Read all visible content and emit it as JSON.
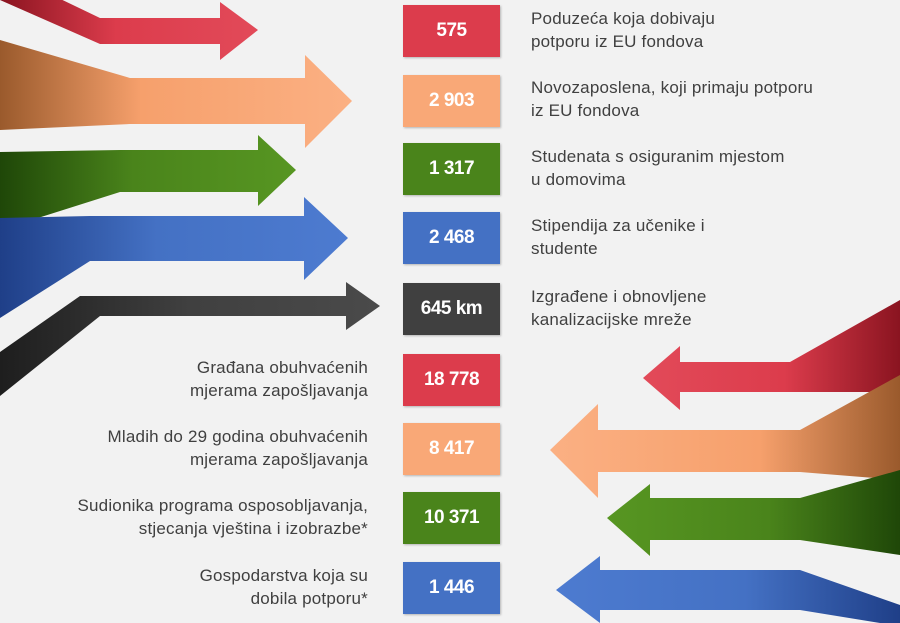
{
  "colors": {
    "red": "#dc3c4c",
    "orange": "#f9a877",
    "green": "#4a841b",
    "blue": "#4471c4",
    "dark": "#404040"
  },
  "items": [
    {
      "value": "575",
      "color": "red",
      "side": "right",
      "line1": "Poduzeća koja dobivaju",
      "line2": "potporu iz EU fondova"
    },
    {
      "value": "2 903",
      "color": "orange",
      "side": "right",
      "line1": "Novozaposlena, koji primaju potporu",
      "line2": "iz EU fondova"
    },
    {
      "value": "1 317",
      "color": "green",
      "side": "right",
      "line1": "Studenata s osiguranim mjestom",
      "line2": "u domovima"
    },
    {
      "value": "2 468",
      "color": "blue",
      "side": "right",
      "line1": "Stipendija za učenike i",
      "line2": "studente"
    },
    {
      "value": "645 km",
      "color": "dark",
      "side": "right",
      "line1": "Izgrađene i obnovljene",
      "line2": "kanalizacijske mreže"
    },
    {
      "value": "18 778",
      "color": "red",
      "side": "left",
      "line1": "Građana obuhvaćenih",
      "line2": "mjerama zapošljavanja"
    },
    {
      "value": "8 417",
      "color": "orange",
      "side": "left",
      "line1": "Mladih do 29 godina obuhvaćenih",
      "line2": "mjerama zapošljavanja"
    },
    {
      "value": "10 371",
      "color": "green",
      "side": "left",
      "line1": "Sudionika programa osposobljavanja,",
      "line2": "stjecanja vještina i izobrazbe*"
    },
    {
      "value": "1 446",
      "color": "blue",
      "side": "left",
      "line1": "Gospodarstva koja su",
      "line2": "dobila potporu*"
    }
  ]
}
